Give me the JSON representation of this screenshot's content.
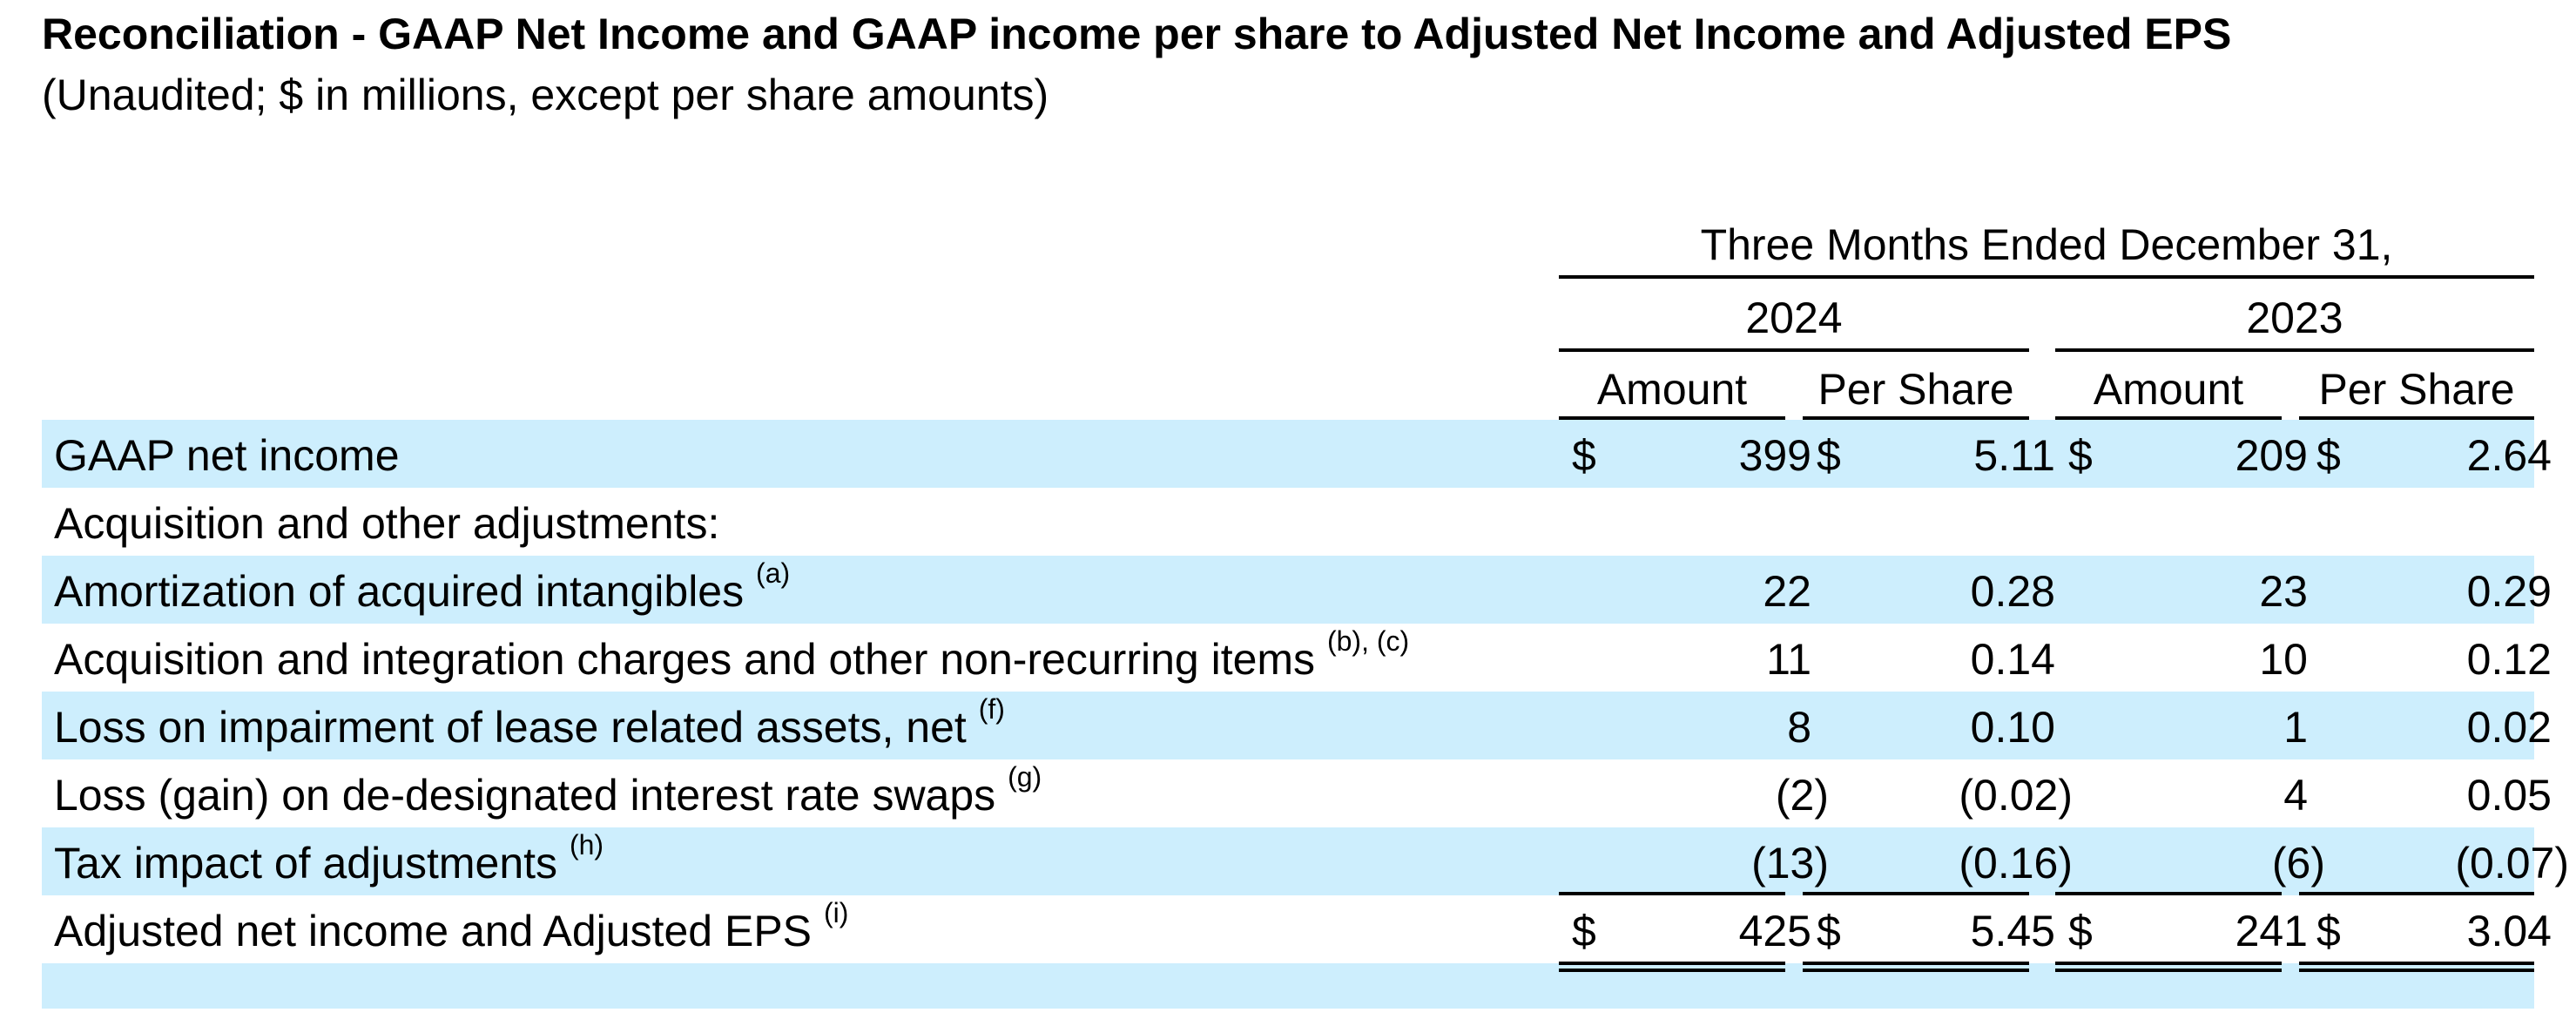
{
  "title": "Reconciliation - GAAP Net Income and GAAP income per share to Adjusted Net Income and Adjusted EPS",
  "subtitle": "(Unaudited; $ in millions, except per share amounts)",
  "header": {
    "period": "Three Months Ended December 31,",
    "years": [
      "2024",
      "2023"
    ],
    "columns": [
      "Amount",
      "Per Share",
      "Amount",
      "Per Share"
    ]
  },
  "rows": [
    {
      "label": "GAAP net income",
      "note": "",
      "values": [
        "399",
        "5.11",
        "209",
        "2.64"
      ],
      "dollar": true
    },
    {
      "label": "Acquisition and other adjustments:",
      "note": "",
      "values": [
        "",
        "",
        "",
        ""
      ],
      "dollar": false
    },
    {
      "label": "Amortization of acquired intangibles",
      "note": "(a)",
      "values": [
        "22",
        "0.28",
        "23",
        "0.29"
      ],
      "dollar": false
    },
    {
      "label": "Acquisition and integration charges and other non-recurring items",
      "note": "(b), (c)",
      "values": [
        "11",
        "0.14",
        "10",
        "0.12"
      ],
      "dollar": false
    },
    {
      "label": "Loss on impairment of lease related assets, net",
      "note": "(f)",
      "values": [
        "8",
        "0.10",
        "1",
        "0.02"
      ],
      "dollar": false
    },
    {
      "label": "Loss (gain) on de-designated interest rate swaps",
      "note": "(g)",
      "values": [
        "(2)",
        "(0.02)",
        "4",
        "0.05"
      ],
      "dollar": false
    },
    {
      "label": "Tax impact of adjustments",
      "note": "(h)",
      "values": [
        "(13)",
        "(0.16)",
        "(6)",
        "(0.07)"
      ],
      "dollar": false
    },
    {
      "label": "Adjusted net income and Adjusted EPS",
      "note": "(i)",
      "values": [
        "425",
        "5.45",
        "241",
        "3.04"
      ],
      "dollar": true
    }
  ],
  "currency_symbol": "$",
  "colors": {
    "row_shade": "#cdeefd"
  }
}
